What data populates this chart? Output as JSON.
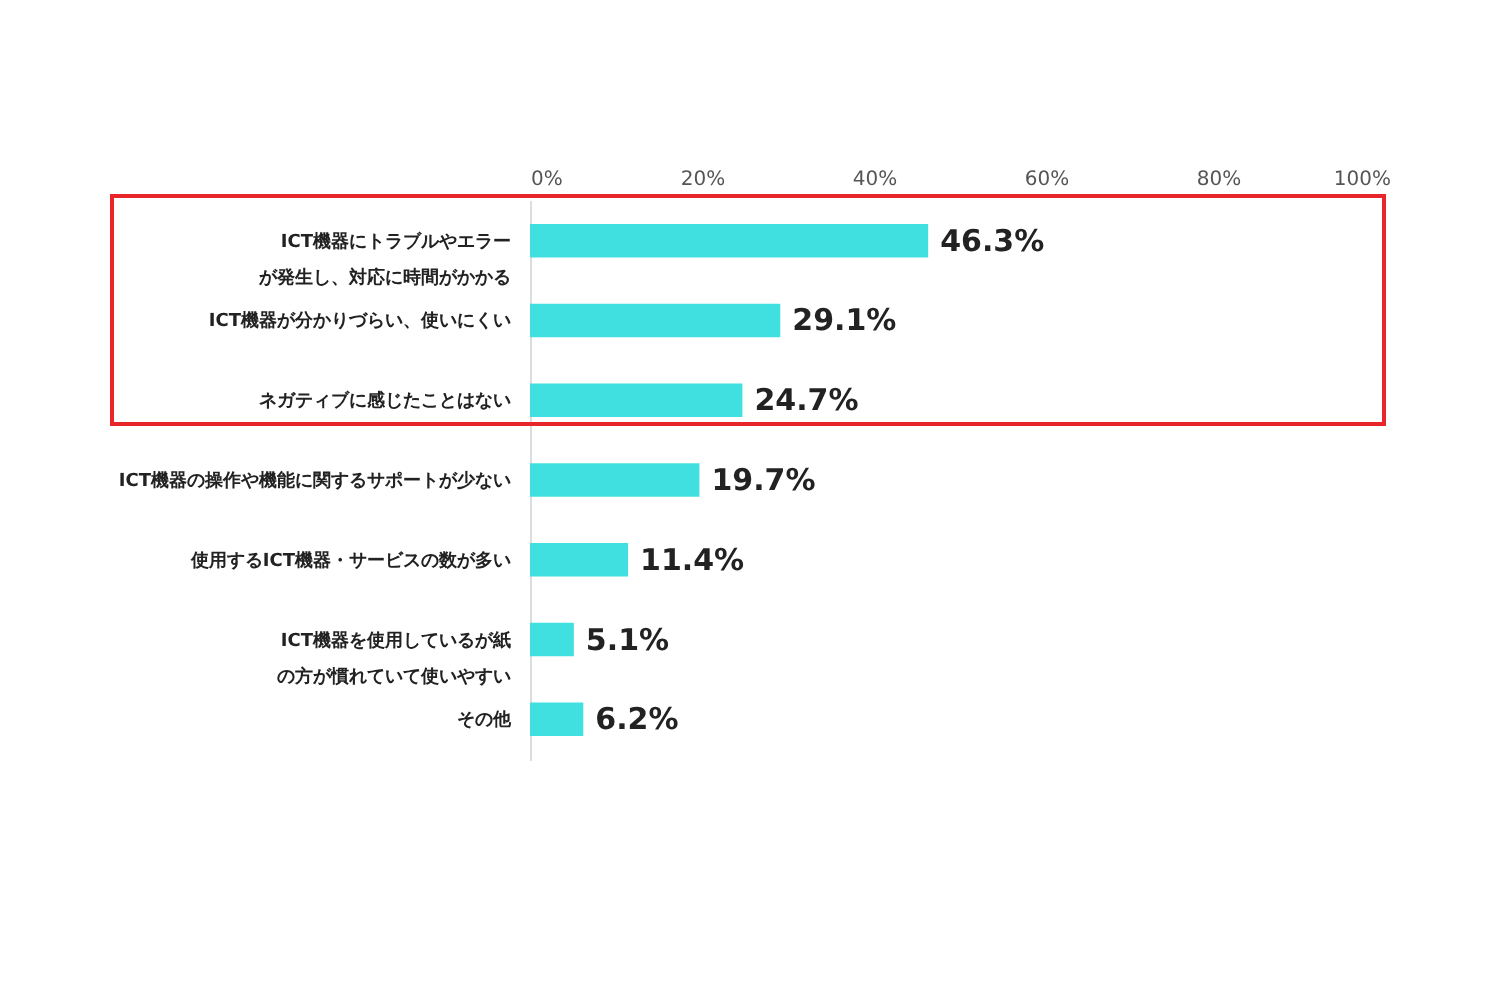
{
  "chart_data": {
    "type": "bar",
    "orientation": "horizontal",
    "categories": [
      "ICT機器にトラブルやエラーが発生し、対応に時間がかかる",
      "ICT機器が分かりづらい、使いにくい",
      "ネガティブに感じたことはない",
      "ICT機器の操作や機能に関するサポートが少ない",
      "使用するICT機器・サービスの数が多い",
      "ICT機器を使用しているが紙の方が慣れていて使いやすい",
      "その他"
    ],
    "values": [
      46.3,
      29.1,
      24.7,
      19.7,
      11.4,
      5.1,
      6.2
    ],
    "value_labels": [
      "46.3%",
      "29.1%",
      "24.7%",
      "19.7%",
      "11.4%",
      "5.1%",
      "6.2%"
    ],
    "color": "#40e0e0",
    "xlim": [
      0,
      100
    ],
    "xticks": [
      {
        "value": 0,
        "label": "0%"
      },
      {
        "value": 20,
        "label": "20%"
      },
      {
        "value": 40,
        "label": "40%"
      },
      {
        "value": 60,
        "label": "60%"
      },
      {
        "value": 80,
        "label": "80%"
      },
      {
        "value": 100,
        "label": "100%"
      }
    ],
    "grid": false
  }
}
